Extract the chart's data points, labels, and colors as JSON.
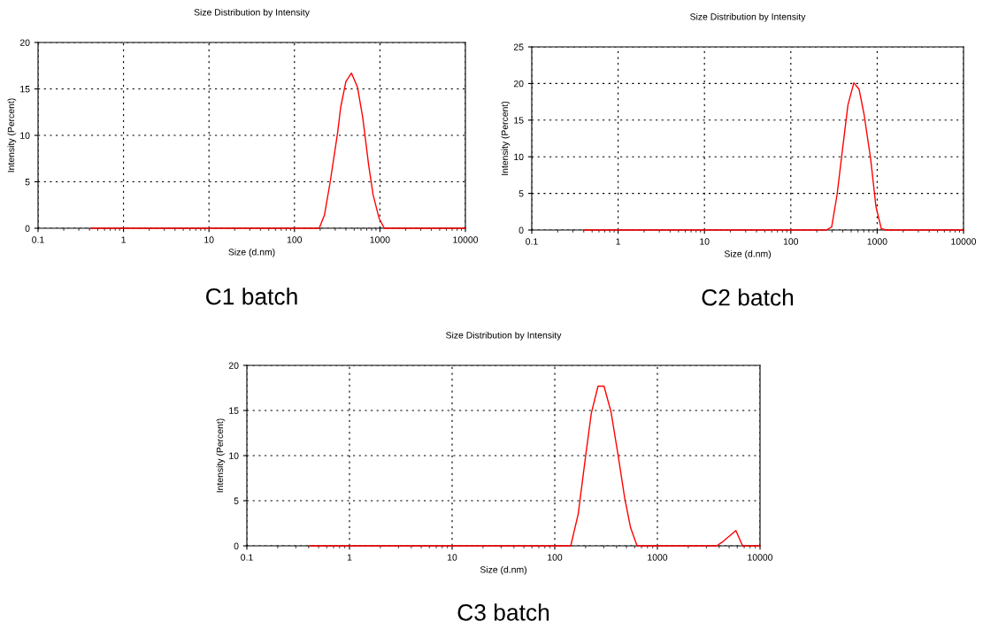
{
  "chart_data": [
    {
      "type": "line",
      "title": "Size Distribution by Intensity",
      "xlabel": "Size (d.nm)",
      "ylabel": "Intensity (Percent)",
      "log": "x",
      "grid": true,
      "xlim": [
        0.1,
        10000
      ],
      "xticks": [
        0.1,
        1,
        10,
        100,
        1000,
        10000
      ],
      "ylim": [
        0,
        20
      ],
      "yticks": [
        0,
        5,
        10,
        15,
        20
      ],
      "annotations": [
        "C1 batch"
      ],
      "series": [
        {
          "color": "#ff0000",
          "x": [
            0.42,
            195,
            224,
            262,
            320,
            347,
            400,
            465,
            546,
            630,
            738,
            832,
            975,
            1125,
            10000
          ],
          "values": [
            0,
            0,
            1.4,
            5.0,
            10.3,
            13.0,
            15.8,
            16.7,
            15.2,
            11.9,
            6.8,
            3.6,
            1.1,
            0,
            0
          ]
        }
      ]
    },
    {
      "type": "line",
      "title": "Size Distribution by Intensity",
      "xlabel": "Size (d.nm)",
      "ylabel": "Intensity (Percent)",
      "log": "x",
      "grid": true,
      "xlim": [
        0.1,
        10000
      ],
      "xticks": [
        0.1,
        1,
        10,
        100,
        1000,
        10000
      ],
      "ylim": [
        0,
        25
      ],
      "yticks": [
        0,
        5,
        10,
        15,
        20,
        25
      ],
      "annotations": [
        "C2 batch"
      ],
      "series": [
        {
          "color": "#ff0000",
          "x": [
            0.4,
            258,
            297,
            343,
            392,
            459,
            537,
            618,
            707,
            840,
            968,
            1115,
            1274,
            10000
          ],
          "values": [
            0,
            0,
            0.4,
            4.8,
            10.5,
            17.1,
            20.1,
            19.2,
            15.7,
            9.7,
            3.2,
            0.2,
            0,
            0
          ]
        }
      ]
    },
    {
      "type": "line",
      "title": "Size Distribution by Intensity",
      "xlabel": "Size (d.nm)",
      "ylabel": "Intensity (Percent)",
      "log": "x",
      "grid": true,
      "xlim": [
        0.1,
        10000
      ],
      "xticks": [
        0.1,
        1,
        10,
        100,
        1000,
        10000
      ],
      "ylim": [
        0,
        20
      ],
      "yticks": [
        0,
        5,
        10,
        15,
        20
      ],
      "annotations": [
        "C3 batch"
      ],
      "series": [
        {
          "color": "#ff0000",
          "x": [
            0.41,
            143,
            169,
            199,
            227,
            264,
            302,
            354,
            412,
            480,
            548,
            634,
            3784,
            4260,
            5820,
            6760,
            10000
          ],
          "values": [
            0,
            0,
            3.5,
            9.8,
            14.7,
            17.7,
            17.7,
            14.8,
            10.2,
            5.3,
            2.0,
            0,
            0,
            0.4,
            1.7,
            0,
            0
          ]
        }
      ]
    }
  ]
}
